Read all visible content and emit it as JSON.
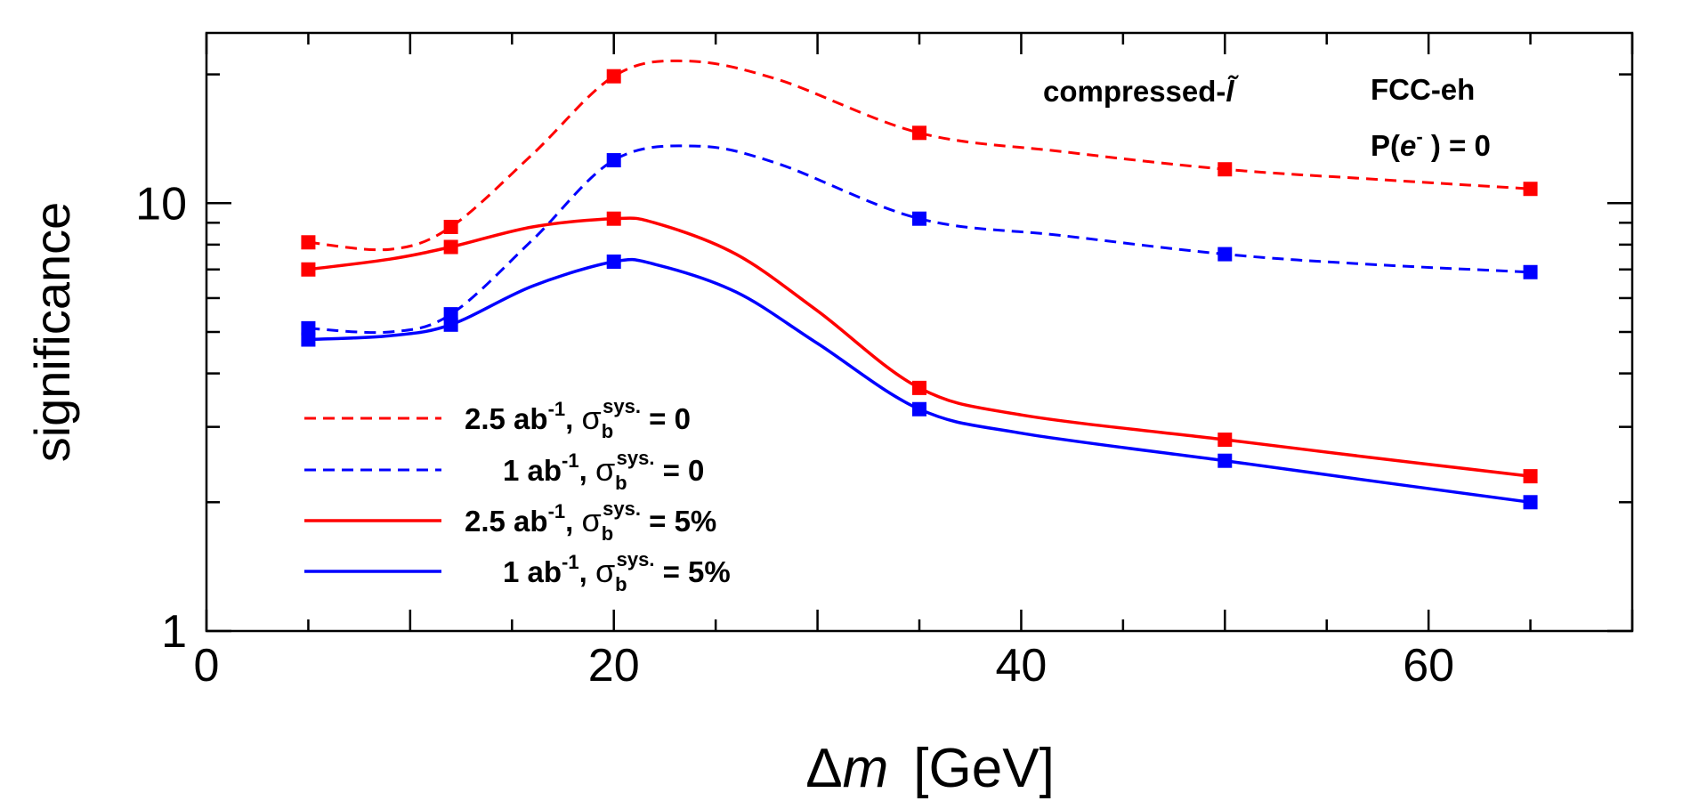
{
  "chart_data": {
    "type": "line",
    "xlabel_symbol": "Δ",
    "xlabel_var": "m",
    "xlabel_unit": "[GeV]",
    "ylabel": "significance",
    "yscale": "log",
    "xlim": [
      0,
      70
    ],
    "ylim": [
      1,
      25
    ],
    "x_ticks": [
      0,
      20,
      40,
      60
    ],
    "y_ticks": [
      1,
      10
    ],
    "annotations": {
      "process_prefix": "compressed-",
      "process_symbol": "l̃",
      "collider": "FCC-eh",
      "polarization_prefix": "P(",
      "polarization_var": "e",
      "polarization_sup": "-",
      "polarization_suffix": " ) = 0"
    },
    "x": [
      5,
      12,
      20,
      35,
      50,
      65
    ],
    "series": [
      {
        "name": "2.5 ab-1, sigma_b sys. = 0",
        "lumi": "2.5 ab",
        "lumi_sup": "-1",
        "sigma": "σ",
        "sigma_sub": "b",
        "sigma_sup": "sys.",
        "value_text": " = 0",
        "color": "#ff0000",
        "dash": true,
        "values": [
          8.1,
          8.8,
          19.8,
          14.6,
          12.0,
          10.8
        ],
        "curve_x": [
          5,
          9,
          12,
          16,
          20,
          23.5,
          28,
          35,
          42,
          50,
          57,
          65
        ],
        "curve_y": [
          8.1,
          7.8,
          8.8,
          13.0,
          19.8,
          21.5,
          19.5,
          14.6,
          13.2,
          12.0,
          11.4,
          10.8
        ]
      },
      {
        "name": "1 ab-1, sigma_b sys. = 0",
        "lumi": "1 ab",
        "lumi_sup": "-1",
        "sigma": "σ",
        "sigma_sub": "b",
        "sigma_sup": "sys.",
        "value_text": " = 0",
        "color": "#0000ff",
        "dash": true,
        "values": [
          5.1,
          5.5,
          12.6,
          9.2,
          7.6,
          6.9
        ],
        "curve_x": [
          5,
          9,
          12,
          16,
          20,
          24,
          28,
          35,
          42,
          50,
          57,
          65
        ],
        "curve_y": [
          5.1,
          5.0,
          5.5,
          8.2,
          12.6,
          13.6,
          12.4,
          9.2,
          8.4,
          7.6,
          7.2,
          6.9
        ]
      },
      {
        "name": "2.5 ab-1, sigma_b sys. = 5%",
        "lumi": "2.5 ab",
        "lumi_sup": "-1",
        "sigma": "σ",
        "sigma_sub": "b",
        "sigma_sup": "sys.",
        "value_text": " = 5%",
        "color": "#ff0000",
        "dash": false,
        "values": [
          7.0,
          7.9,
          9.2,
          3.7,
          2.8,
          2.3
        ],
        "curve_x": [
          5,
          9,
          12,
          16,
          20,
          22,
          26,
          30,
          35,
          40,
          50,
          57,
          65
        ],
        "curve_y": [
          7.0,
          7.4,
          7.9,
          8.8,
          9.2,
          9.0,
          7.6,
          5.6,
          3.7,
          3.2,
          2.8,
          2.55,
          2.3
        ]
      },
      {
        "name": "1 ab-1, sigma_b sys. = 5%",
        "lumi": "1 ab",
        "lumi_sup": "-1",
        "sigma": "σ",
        "sigma_sub": "b",
        "sigma_sup": "sys.",
        "value_text": " = 5%",
        "color": "#0000ff",
        "dash": false,
        "values": [
          4.8,
          5.2,
          7.3,
          3.3,
          2.5,
          2.0
        ],
        "curve_x": [
          5,
          9,
          12,
          16,
          20,
          22,
          26,
          30,
          35,
          40,
          50,
          57,
          65
        ],
        "curve_y": [
          4.8,
          4.9,
          5.2,
          6.4,
          7.3,
          7.2,
          6.2,
          4.7,
          3.3,
          2.9,
          2.5,
          2.25,
          2.0
        ]
      }
    ]
  }
}
